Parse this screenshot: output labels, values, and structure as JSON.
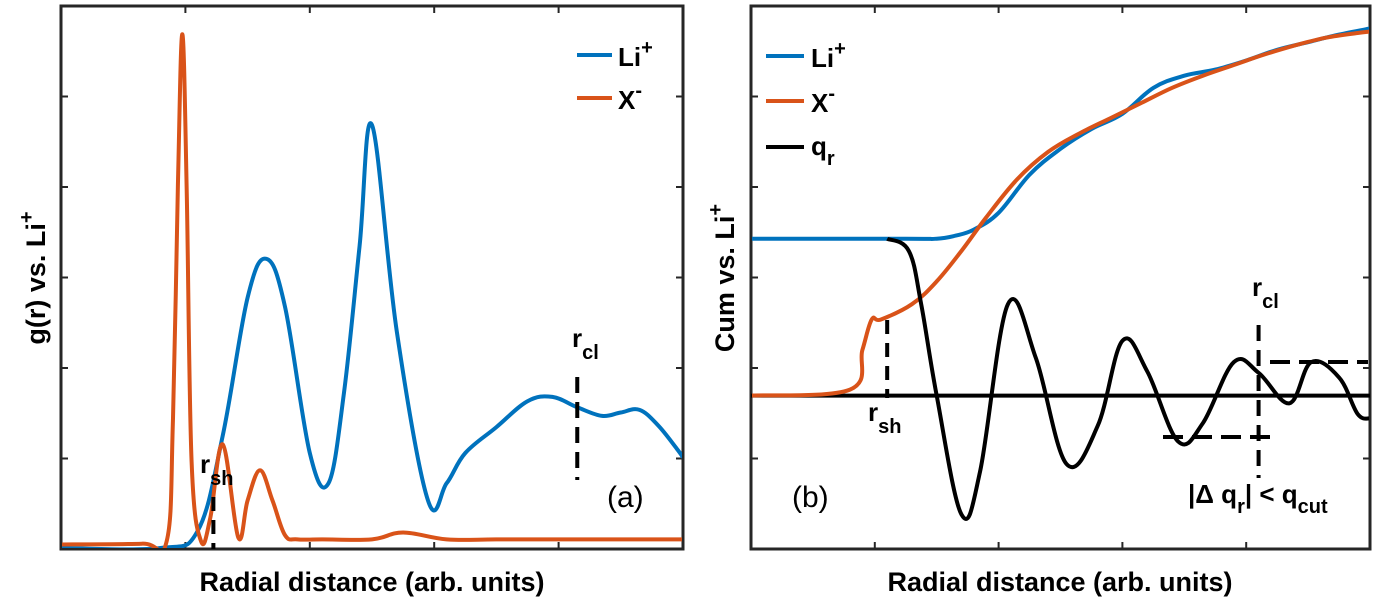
{
  "colors": {
    "li": "#0072BD",
    "x": "#D95319",
    "q": "#000000"
  },
  "chart_data": [
    {
      "type": "line",
      "panel_label": "(a)",
      "xlabel": "Radial distance (arb. units)",
      "ylabel_main": "g(r) vs. Li",
      "ylabel_sup": "+",
      "xlim": [
        0,
        10
      ],
      "ylim": [
        0,
        6
      ],
      "ticks_shown": false,
      "legend": {
        "position": "top-right",
        "entries": [
          {
            "main": "Li",
            "sup": "+",
            "color": "li"
          },
          {
            "main": "X",
            "sup": "-",
            "color": "x"
          }
        ]
      },
      "series": [
        {
          "name": "Li+",
          "color": "li",
          "x": [
            0,
            1.6,
            2.2,
            2.6,
            3.0,
            3.3,
            3.6,
            4.0,
            4.3,
            4.55,
            4.8,
            5.0,
            5.4,
            5.9,
            6.2,
            6.5,
            7.0,
            7.5,
            7.9,
            8.3,
            8.7,
            9.0,
            9.3,
            9.6,
            9.9,
            10.0
          ],
          "y": [
            0,
            0,
            0.2,
            1.3,
            2.9,
            3.35,
            2.8,
            1.1,
            0.75,
            1.8,
            3.5,
            4.9,
            2.5,
            0.55,
            0.75,
            1.1,
            1.4,
            1.7,
            1.75,
            1.63,
            1.53,
            1.57,
            1.6,
            1.42,
            1.15,
            1.05
          ]
        },
        {
          "name": "X-",
          "color": "x",
          "x": [
            0,
            1.3,
            1.7,
            1.8,
            1.88,
            1.95,
            2.02,
            2.1,
            2.25,
            2.4,
            2.6,
            2.85,
            3.0,
            3.2,
            3.4,
            3.6,
            3.8,
            4.2,
            5.0,
            5.5,
            6.2,
            7.0,
            8.0,
            9.0,
            10.0
          ],
          "y": [
            0.04,
            0.05,
            0.08,
            1.5,
            4.2,
            5.95,
            4.2,
            1.0,
            0.08,
            0.35,
            1.2,
            0.12,
            0.55,
            0.9,
            0.55,
            0.15,
            0.1,
            0.1,
            0.1,
            0.18,
            0.1,
            0.1,
            0.1,
            0.1,
            0.1
          ]
        }
      ],
      "annotations": [
        {
          "main": "r",
          "sub": "sh",
          "x": 2.45
        },
        {
          "main": "r",
          "sub": "cl",
          "x": 8.3
        }
      ]
    },
    {
      "type": "line",
      "panel_label": "(b)",
      "xlabel": "Radial distance (arb. units)",
      "ylabel_main": "Cum vs. Li",
      "ylabel_sup": "+",
      "xlim": [
        0,
        10
      ],
      "ylim": [
        -1.0,
        2.4
      ],
      "ticks_shown": false,
      "legend": {
        "position": "top-left",
        "entries": [
          {
            "main": "Li",
            "sup": "+",
            "color": "li"
          },
          {
            "main": "X",
            "sup": "-",
            "color": "x"
          },
          {
            "main": "q",
            "sub": "r",
            "color": "q"
          }
        ]
      },
      "series": [
        {
          "name": "Li+",
          "color": "li",
          "x": [
            0,
            2.5,
            3.0,
            3.3,
            3.6,
            4.0,
            4.5,
            5.0,
            5.5,
            6.0,
            6.5,
            7.0,
            7.5,
            8.0,
            8.5,
            9.0,
            9.5,
            10.0
          ],
          "y": [
            1.03,
            1.03,
            1.03,
            1.05,
            1.09,
            1.2,
            1.45,
            1.62,
            1.75,
            1.85,
            2.02,
            2.1,
            2.14,
            2.2,
            2.27,
            2.32,
            2.37,
            2.41
          ]
        },
        {
          "name": "X-",
          "color": "x",
          "x": [
            0,
            1.6,
            1.8,
            1.95,
            2.1,
            2.6,
            3.0,
            3.4,
            3.8,
            4.3,
            4.8,
            5.3,
            5.8,
            6.3,
            6.8,
            7.3,
            7.8,
            8.3,
            8.8,
            9.3,
            9.8,
            10.0
          ],
          "y": [
            0,
            0.04,
            0.3,
            0.5,
            0.5,
            0.6,
            0.75,
            0.95,
            1.17,
            1.42,
            1.6,
            1.72,
            1.82,
            1.92,
            2.02,
            2.1,
            2.17,
            2.24,
            2.3,
            2.35,
            2.38,
            2.39
          ]
        },
        {
          "name": "q_r",
          "color": "q",
          "x": [
            2.2,
            2.55,
            2.75,
            3.0,
            3.4,
            3.7,
            4.15,
            4.6,
            5.1,
            5.6,
            6.0,
            6.4,
            6.9,
            7.3,
            7.8,
            8.2,
            8.7,
            9.05,
            9.5,
            9.8,
            10.0
          ],
          "y": [
            1.03,
            0.95,
            0.6,
            0,
            -0.78,
            -0.5,
            0.6,
            0.25,
            -0.45,
            -0.2,
            0.36,
            0.16,
            -0.3,
            -0.18,
            0.22,
            0.15,
            -0.05,
            0.22,
            0.12,
            -0.12,
            -0.15
          ]
        }
      ],
      "annotations": [
        {
          "main": "r",
          "sub": "sh",
          "x": 2.2
        },
        {
          "main": "r",
          "sub": "cl",
          "x": 8.2
        },
        {
          "text_prefix": "|Δ q",
          "sub1": "r",
          "text_mid": "| < q",
          "sub2": "cut"
        }
      ]
    }
  ]
}
